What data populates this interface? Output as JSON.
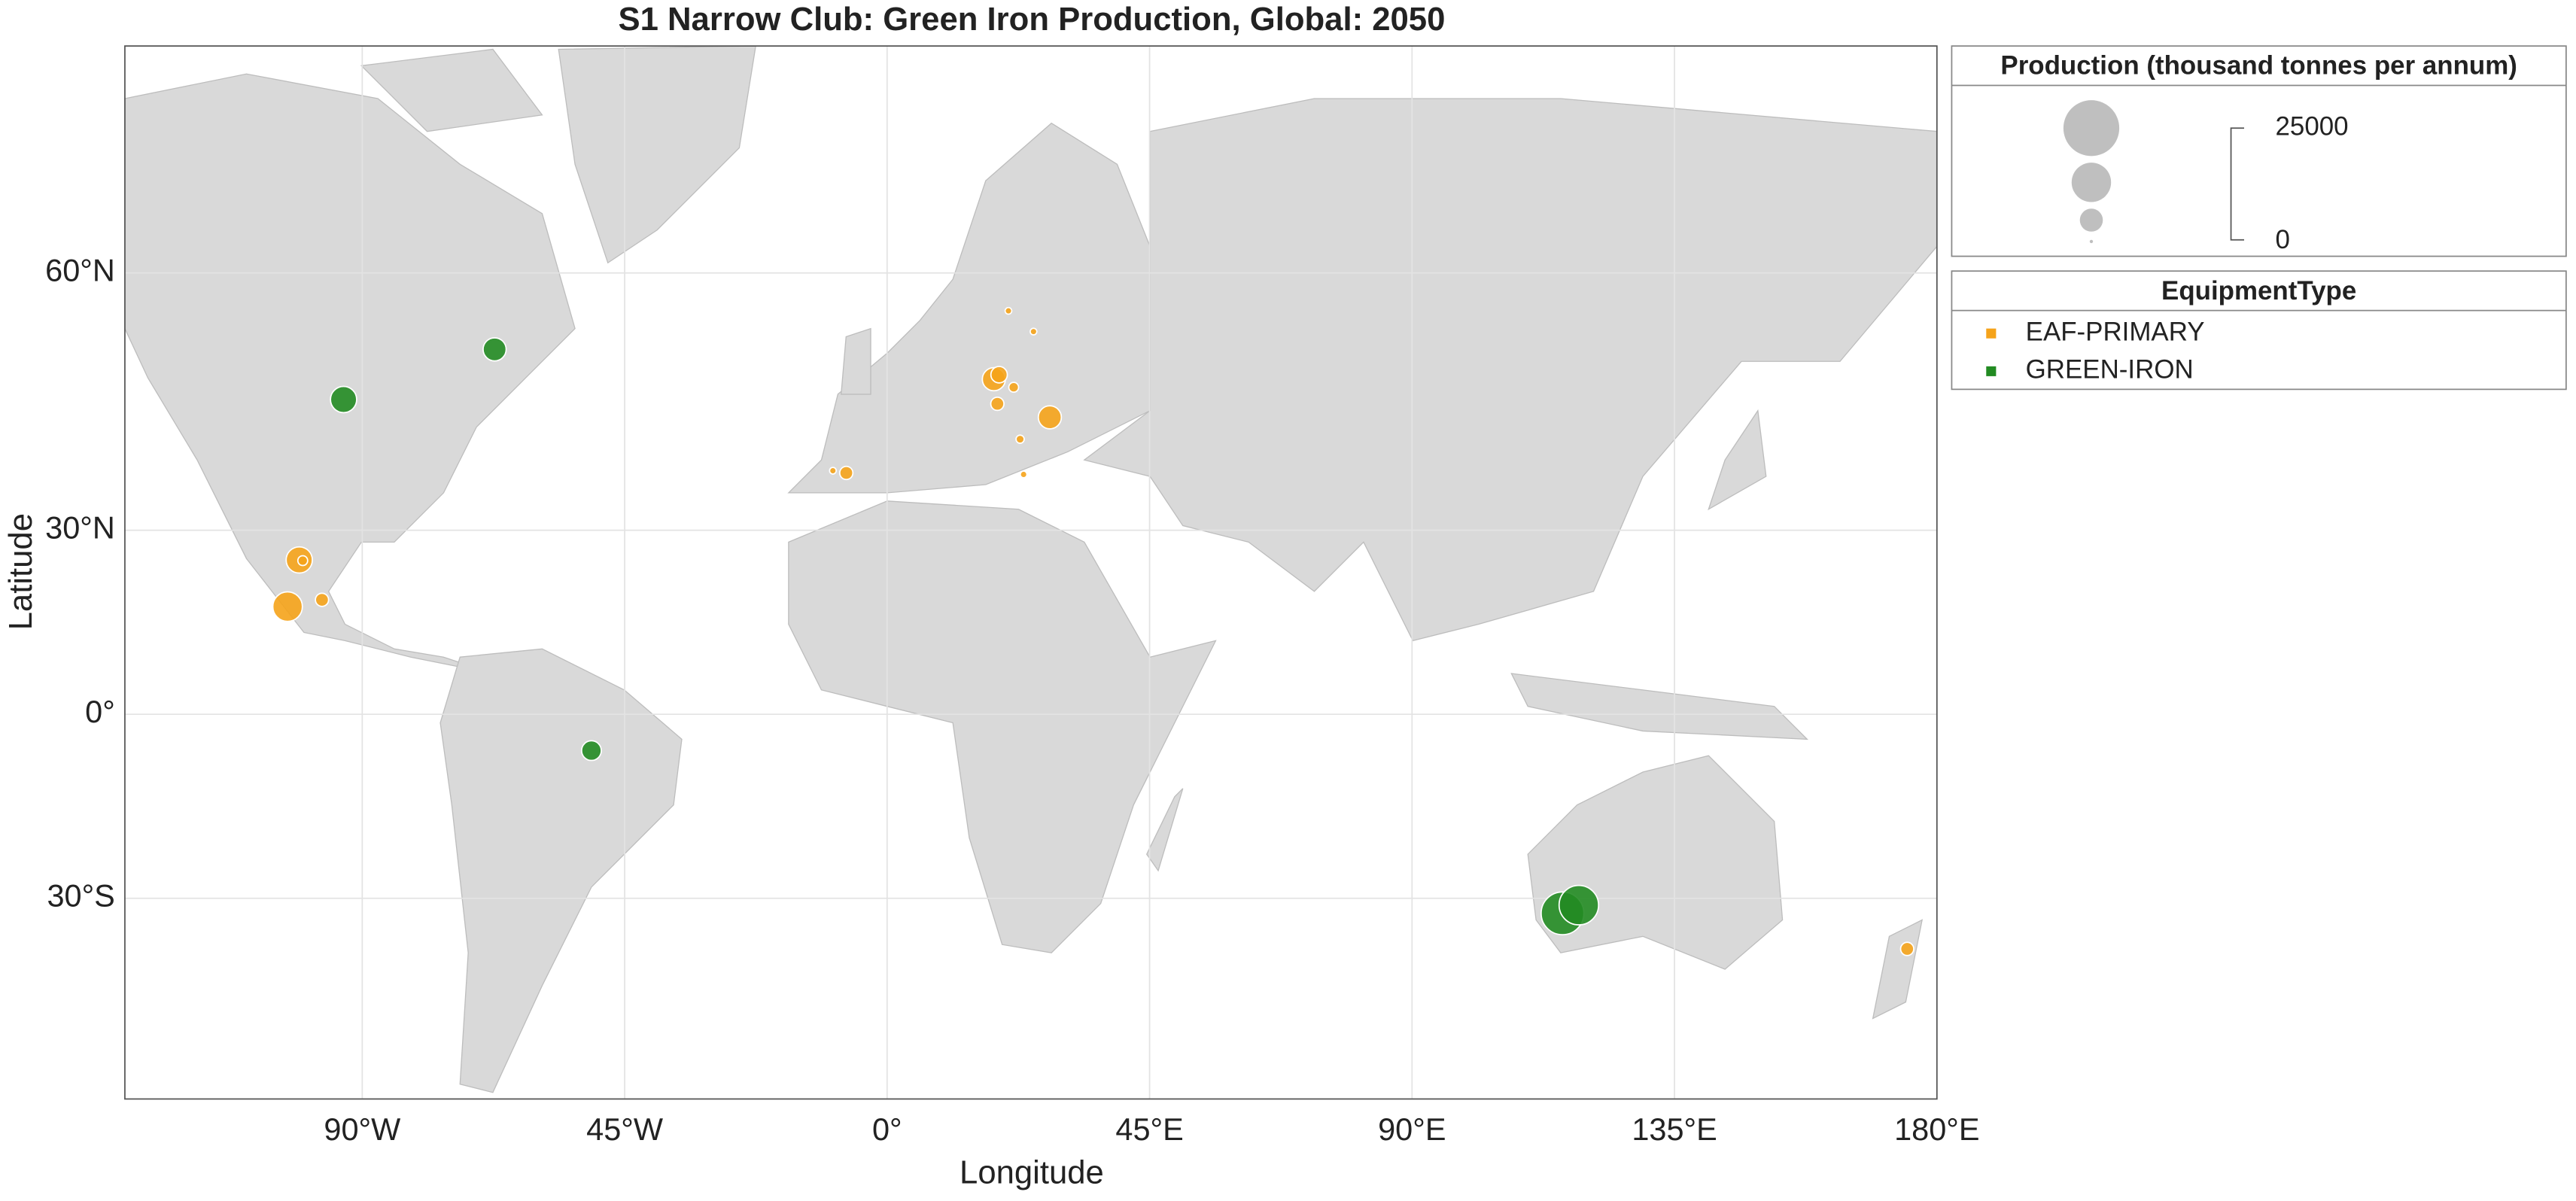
{
  "chart_data": {
    "type": "geobubble",
    "title": "S1 Narrow Club: Green Iron Production, Global: 2050",
    "xlabel": "Longitude",
    "ylabel": "Latitude",
    "xlim": [
      -130.7,
      180
    ],
    "ylim": [
      -54.8,
      74.5
    ],
    "xticks": [
      {
        "value": -90,
        "label": "90°W"
      },
      {
        "value": -45,
        "label": "45°W"
      },
      {
        "value": 0,
        "label": "0°"
      },
      {
        "value": 45,
        "label": "45°E"
      },
      {
        "value": 90,
        "label": "90°E"
      },
      {
        "value": 135,
        "label": "135°E"
      },
      {
        "value": 180,
        "label": "180°E"
      }
    ],
    "yticks": [
      {
        "value": -30,
        "label": "30°S"
      },
      {
        "value": 0,
        "label": "0°"
      },
      {
        "value": 30,
        "label": "30°N"
      },
      {
        "value": 60,
        "label": "60°N"
      }
    ],
    "grid": true,
    "size_legend": {
      "title": "Production (thousand tonnes per annum)",
      "max": 25000,
      "min": 0
    },
    "color_legend_title": "EquipmentType",
    "series": [
      {
        "name": "EAF-PRIMARY",
        "color": "#f5a31a",
        "lat": [
          18.1,
          25.5,
          25.4,
          19.2,
          38.1,
          38.4,
          49.6,
          50.1,
          48.7,
          46.8,
          45.2,
          42.5,
          37.9,
          56.6,
          54.6,
          -37.2
        ],
        "lon": [
          -102.8,
          -100.8,
          -100.2,
          -96.9,
          -7.0,
          -9.3,
          18.3,
          19.2,
          21.7,
          18.9,
          27.9,
          22.8,
          23.4,
          20.8,
          25.1,
          174.9
        ],
        "size": [
          12500,
          10900,
          3100,
          4700,
          4700,
          1600,
          9400,
          6250,
          3100,
          4700,
          9400,
          2300,
          1600,
          1600,
          1600,
          4700
        ]
      },
      {
        "name": "GREEN-IRON",
        "color": "#228b22",
        "lat": [
          52.8,
          47.3,
          -6.2,
          -32.2,
          -31.0
        ],
        "lon": [
          -67.3,
          -93.2,
          -50.7,
          115.8,
          118.6
        ],
        "size": [
          9400,
          10900,
          7800,
          18750,
          17200
        ]
      }
    ]
  }
}
